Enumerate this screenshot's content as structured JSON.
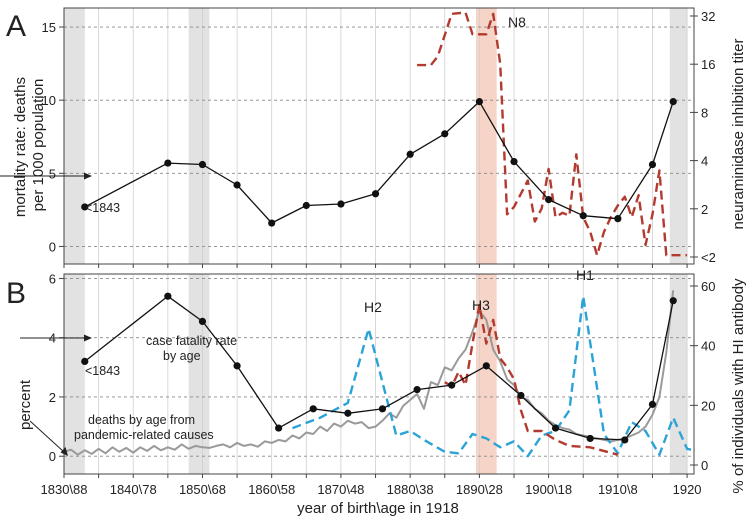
{
  "chart_data": [
    {
      "panel": "A",
      "type": "line",
      "xlabel": "year of birth\\age in 1918",
      "ylabel": "mortality rate: deaths per 1000 population",
      "ylabel_right": "neuraminidase inhibition titer",
      "xlim": [
        1830,
        1921
      ],
      "ylim": [
        -1.2,
        16.3
      ],
      "y_ticks": [
        0,
        5,
        10,
        15
      ],
      "right_axis_labels": [
        "32",
        "16",
        "8",
        "4",
        "2",
        "<2"
      ],
      "shaded_bands": [
        [
          1830,
          1833
        ],
        [
          1848,
          1851
        ],
        [
          1917.5,
          1920
        ]
      ],
      "pink_band": [
        1889.5,
        1892.5
      ],
      "annotations": {
        "first_point": "<1843",
        "titer_series": "N8"
      },
      "series": [
        {
          "name": "mortality rate",
          "style": "solid-black-dots",
          "color": "#111111",
          "x": [
            1833,
            1845,
            1850,
            1855,
            1860,
            1865,
            1870,
            1875,
            1880,
            1885,
            1890,
            1895,
            1900,
            1905,
            1910,
            1915,
            1918
          ],
          "y": [
            2.7,
            5.7,
            5.6,
            4.2,
            1.6,
            2.8,
            2.9,
            3.6,
            6.3,
            7.7,
            9.9,
            5.8,
            3.2,
            2.1,
            1.9,
            5.6,
            9.9
          ]
        },
        {
          "name": "N8 neuraminidase inhibition titer",
          "style": "dashed",
          "color": "#b23a2e",
          "x": [
            1881,
            1883,
            1884,
            1886,
            1888,
            1889,
            1891,
            1892,
            1893,
            1894,
            1895,
            1897,
            1898,
            1899,
            1900,
            1901,
            1902,
            1903,
            1904,
            1905,
            1906,
            1907,
            1908,
            1909,
            1910,
            1911,
            1912,
            1913,
            1914,
            1915,
            1916,
            1917,
            1918,
            1919,
            1920
          ],
          "y": [
            12.4,
            12.4,
            13.0,
            15.9,
            16.0,
            14.5,
            14.5,
            15.9,
            12.5,
            2.2,
            2.7,
            4.5,
            1.7,
            2.6,
            5.3,
            2.0,
            2.3,
            2.1,
            6.3,
            2.0,
            1.0,
            -0.6,
            1.0,
            2.0,
            2.8,
            3.4,
            2.0,
            3.5,
            0.1,
            2.2,
            5.2,
            -0.6,
            -0.6,
            -0.6,
            -0.6
          ]
        }
      ]
    },
    {
      "panel": "B",
      "type": "line",
      "xlabel": "year of birth\\age in 1918",
      "ylabel": "percent",
      "ylabel_right": "% of individuals with HI antibody",
      "xlim": [
        1830,
        1921
      ],
      "ylim": [
        -0.6,
        6.15
      ],
      "y_ticks": [
        0,
        2,
        4,
        6
      ],
      "right_ticks": [
        0,
        20,
        40,
        60
      ],
      "x_tick_labels": [
        "1830\\88",
        "1840\\78",
        "1850\\68",
        "1860\\58",
        "1870\\48",
        "1880\\38",
        "1890\\28",
        "1900\\18",
        "1910\\8",
        "1920"
      ],
      "shaded_bands": [
        [
          1830,
          1833
        ],
        [
          1848,
          1851
        ],
        [
          1917.5,
          1920
        ]
      ],
      "pink_band": [
        1889.5,
        1892.5
      ],
      "annotations": {
        "case_fatality": "case fatality rate by age",
        "first_point": "<1843",
        "deaths_label": "deaths by age from pandemic-related causes",
        "h2": "H2",
        "h3": "H3",
        "h1": "H1"
      },
      "series": [
        {
          "name": "case fatality rate by age",
          "style": "solid-black-dots",
          "color": "#111111",
          "x": [
            1833,
            1845,
            1850,
            1855,
            1861,
            1866,
            1871,
            1876,
            1881,
            1886,
            1891,
            1896,
            1901,
            1906,
            1911,
            1915,
            1918
          ],
          "y": [
            3.2,
            5.4,
            4.55,
            3.05,
            0.95,
            1.6,
            1.45,
            1.6,
            2.25,
            2.4,
            3.05,
            2.05,
            0.95,
            0.6,
            0.55,
            1.75,
            5.25
          ]
        },
        {
          "name": "deaths by age from pandemic-related causes",
          "style": "solid-gray",
          "color": "#9a9a9a",
          "x": [
            1830,
            1831,
            1832,
            1833,
            1834,
            1835,
            1836,
            1837,
            1838,
            1839,
            1840,
            1841,
            1842,
            1843,
            1844,
            1845,
            1846,
            1847,
            1848,
            1849,
            1850,
            1851,
            1852,
            1853,
            1854,
            1855,
            1856,
            1857,
            1858,
            1859,
            1860,
            1861,
            1862,
            1863,
            1864,
            1865,
            1866,
            1867,
            1868,
            1869,
            1870,
            1871,
            1872,
            1873,
            1874,
            1875,
            1876,
            1877,
            1878,
            1879,
            1880,
            1881,
            1882,
            1883,
            1884,
            1885,
            1886,
            1887,
            1888,
            1889,
            1890,
            1891,
            1892,
            1893,
            1894,
            1895,
            1896,
            1897,
            1898,
            1899,
            1900,
            1901,
            1902,
            1903,
            1904,
            1905,
            1906,
            1907,
            1908,
            1909,
            1910,
            1911,
            1912,
            1913,
            1914,
            1915,
            1916,
            1917,
            1918
          ],
          "y": [
            0.15,
            0.22,
            0.05,
            0.2,
            0.08,
            0.25,
            0.1,
            0.3,
            0.15,
            0.28,
            0.12,
            0.3,
            0.18,
            0.35,
            0.2,
            0.3,
            0.22,
            0.4,
            0.25,
            0.35,
            0.3,
            0.28,
            0.35,
            0.4,
            0.3,
            0.45,
            0.35,
            0.4,
            0.32,
            0.5,
            0.45,
            0.55,
            0.5,
            0.7,
            0.6,
            0.8,
            0.75,
            1.0,
            0.85,
            1.1,
            1.0,
            1.2,
            1.1,
            1.15,
            0.95,
            1.0,
            1.2,
            1.45,
            1.3,
            1.7,
            1.9,
            2.1,
            1.6,
            2.5,
            2.4,
            3.0,
            2.9,
            3.3,
            3.6,
            4.2,
            4.9,
            4.6,
            3.6,
            3.2,
            2.6,
            2.4,
            2.0,
            1.9,
            1.6,
            1.45,
            1.2,
            1.05,
            0.95,
            0.9,
            0.75,
            0.7,
            0.65,
            0.6,
            0.55,
            0.5,
            0.55,
            0.6,
            0.7,
            0.8,
            1.0,
            1.4,
            2.0,
            3.5,
            5.6
          ]
        },
        {
          "name": "H2 / H1 HI antibody prevalence",
          "style": "dashed",
          "color": "#2ba3d6",
          "x": [
            1863,
            1867,
            1871,
            1874,
            1878,
            1880,
            1882,
            1885,
            1887,
            1889,
            1891,
            1893,
            1895,
            1897,
            1899,
            1901,
            1903,
            1905,
            1908,
            1910,
            1912,
            1914,
            1916,
            1918,
            1920,
            1921
          ],
          "y": [
            0.95,
            1.3,
            1.8,
            4.3,
            0.7,
            0.85,
            0.55,
            0.15,
            0.1,
            0.75,
            0.6,
            0.3,
            0.5,
            0.0,
            0.7,
            0.85,
            1.55,
            5.4,
            0.75,
            0.1,
            1.15,
            0.85,
            0.05,
            1.3,
            0.25,
            0.2
          ]
        },
        {
          "name": "H3 HI antibody prevalence",
          "style": "dashed",
          "color": "#b23a2e",
          "x": [
            1885,
            1886,
            1887,
            1888,
            1889,
            1890,
            1891,
            1892,
            1893,
            1894,
            1895,
            1896,
            1897,
            1899,
            1901,
            1903,
            1906,
            1910
          ],
          "y": [
            2.5,
            2.35,
            2.85,
            2.4,
            3.8,
            5.1,
            3.8,
            4.6,
            3.3,
            3.0,
            2.6,
            1.55,
            0.85,
            0.85,
            0.55,
            0.35,
            0.3,
            0.05
          ]
        }
      ]
    }
  ]
}
